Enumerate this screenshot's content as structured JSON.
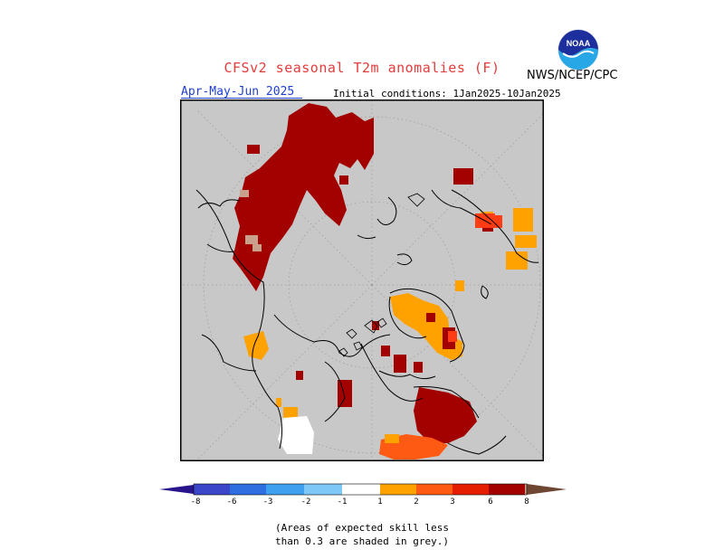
{
  "title": "CFSv2 seasonal T2m anomalies (F)",
  "agency": "NWS/NCEP/CPC",
  "logo": {
    "text": "NOAA",
    "icon": "noaa-logo-icon"
  },
  "season": "Apr-May-Jun 2025",
  "initial_conditions": "Initial conditions: 1Jan2025-10Jan2025",
  "map": {
    "projection": "north polar stereographic",
    "background": "#c8c8c8",
    "skill_mask": "grey"
  },
  "colors": {
    "neg8": "#2a148c",
    "neg6": "#3c46c8",
    "neg3": "#2f6ee0",
    "neg2": "#3fa0f0",
    "neg1": "#7ec8f8",
    "neutral": "#ffffff",
    "pos1": "#ffa200",
    "pos2": "#ff5a14",
    "pos3": "#e61e00",
    "pos6": "#a30000",
    "pos8": "#c8a08c",
    "pos8plus": "#6e4632"
  },
  "colorbar": {
    "labels": [
      "-8",
      "-6",
      "-3",
      "-2",
      "-1",
      "1",
      "2",
      "3",
      "6",
      "8"
    ]
  },
  "note": {
    "line1": "(Areas of expected skill less",
    "line2": "than 0.3 are shaded in grey.)"
  }
}
